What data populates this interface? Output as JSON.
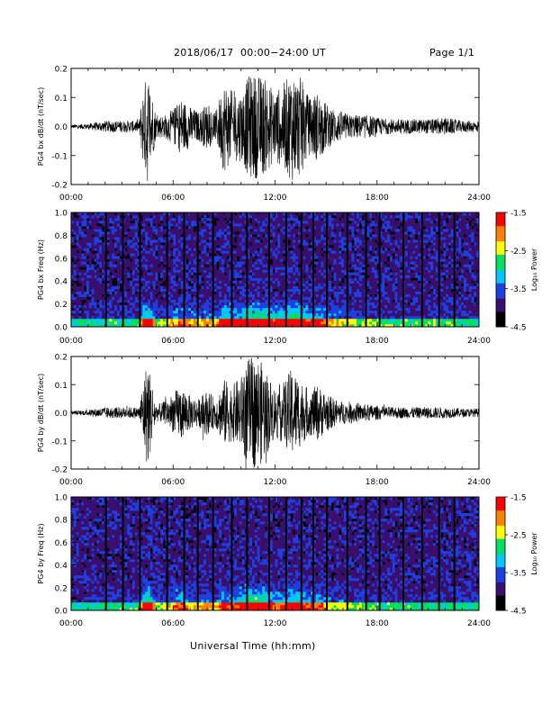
{
  "header": {
    "title": "2018/06/17  00:00−24:00 UT",
    "page": "Page 1/1"
  },
  "xlabel": "Universal Time (hh:mm)",
  "colors": {
    "trace": "#000000",
    "colormap": [
      "#000000",
      "#3a0f6e",
      "#1e40e0",
      "#00c8ff",
      "#00e060",
      "#ffff00",
      "#ff8000",
      "#ff0000"
    ]
  },
  "chart_data": [
    {
      "type": "line",
      "ylabel": "PG4 bx dB/dt (nT/sec)",
      "xlim": [
        0,
        24
      ],
      "ylim": [
        -0.2,
        0.2
      ],
      "xticks": [
        "00:00",
        "06:00",
        "12:00",
        "18:00",
        "24:00"
      ],
      "yticks": [
        "-0.2",
        "-0.1",
        "0.0",
        "0.1",
        "0.2"
      ],
      "x": [
        0,
        1,
        2,
        3,
        4,
        4.2,
        4.5,
        5,
        5.5,
        6,
        6.5,
        7,
        7.5,
        8,
        8.5,
        9,
        9.5,
        10,
        10.5,
        11,
        11.5,
        12,
        12.5,
        13,
        13.5,
        14,
        14.5,
        15,
        15.5,
        16,
        16.5,
        17,
        17.5,
        18,
        19,
        20,
        21,
        22,
        23,
        24
      ],
      "envelope": [
        0.006,
        0.01,
        0.02,
        0.02,
        0.02,
        0.12,
        0.2,
        0.04,
        0.04,
        0.06,
        0.1,
        0.07,
        0.05,
        0.08,
        0.05,
        0.16,
        0.12,
        0.12,
        0.18,
        0.18,
        0.16,
        0.12,
        0.15,
        0.19,
        0.17,
        0.1,
        0.12,
        0.08,
        0.06,
        0.05,
        0.04,
        0.04,
        0.04,
        0.03,
        0.025,
        0.025,
        0.025,
        0.03,
        0.02,
        0.02
      ]
    },
    {
      "type": "heatmap",
      "ylabel": "PG4 bx Freq (Hz)",
      "xlim": [
        0,
        24
      ],
      "ylim": [
        0.0,
        1.0
      ],
      "xticks": [
        "00:00",
        "06:00",
        "12:00",
        "18:00",
        "24:00"
      ],
      "yticks": [
        "0.0",
        "0.2",
        "0.4",
        "0.6",
        "0.8",
        "1.0"
      ],
      "colorbar": {
        "label": "Log₁₀ Power",
        "range": [
          -4.5,
          -1.5
        ],
        "ticks": [
          "-1.5",
          "-2.5",
          "-3.5",
          "-4.5"
        ]
      }
    },
    {
      "type": "line",
      "ylabel": "PG4 by dB/dt (nT/sec)",
      "xlim": [
        0,
        24
      ],
      "ylim": [
        -0.2,
        0.2
      ],
      "xticks": [
        "00:00",
        "06:00",
        "12:00",
        "18:00",
        "24:00"
      ],
      "yticks": [
        "-0.2",
        "-0.1",
        "0.0",
        "0.1",
        "0.2"
      ],
      "x": [
        0,
        1,
        2,
        3,
        4,
        4.2,
        4.5,
        5,
        5.5,
        6,
        6.5,
        7,
        7.5,
        8,
        8.5,
        9,
        9.5,
        10,
        10.5,
        11,
        11.5,
        12,
        12.5,
        13,
        13.5,
        14,
        14.5,
        15,
        15.5,
        16,
        16.5,
        17,
        17.5,
        18,
        19,
        20,
        21,
        22,
        23,
        24
      ],
      "envelope": [
        0.006,
        0.01,
        0.02,
        0.02,
        0.02,
        0.1,
        0.2,
        0.03,
        0.04,
        0.07,
        0.1,
        0.06,
        0.05,
        0.08,
        0.05,
        0.12,
        0.1,
        0.13,
        0.2,
        0.2,
        0.15,
        0.09,
        0.11,
        0.16,
        0.12,
        0.08,
        0.1,
        0.07,
        0.05,
        0.04,
        0.04,
        0.03,
        0.03,
        0.025,
        0.02,
        0.02,
        0.02,
        0.02,
        0.015,
        0.015
      ]
    },
    {
      "type": "heatmap",
      "ylabel": "PG4 by Freq (Hz)",
      "xlim": [
        0,
        24
      ],
      "ylim": [
        0.0,
        1.0
      ],
      "xticks": [
        "00:00",
        "06:00",
        "12:00",
        "18:00",
        "24:00"
      ],
      "yticks": [
        "0.0",
        "0.2",
        "0.4",
        "0.6",
        "0.8",
        "1.0"
      ],
      "colorbar": {
        "label": "Log₁₀ Power",
        "range": [
          -4.5,
          -1.5
        ],
        "ticks": [
          "-1.5",
          "-2.5",
          "-3.5",
          "-4.5"
        ]
      }
    }
  ]
}
